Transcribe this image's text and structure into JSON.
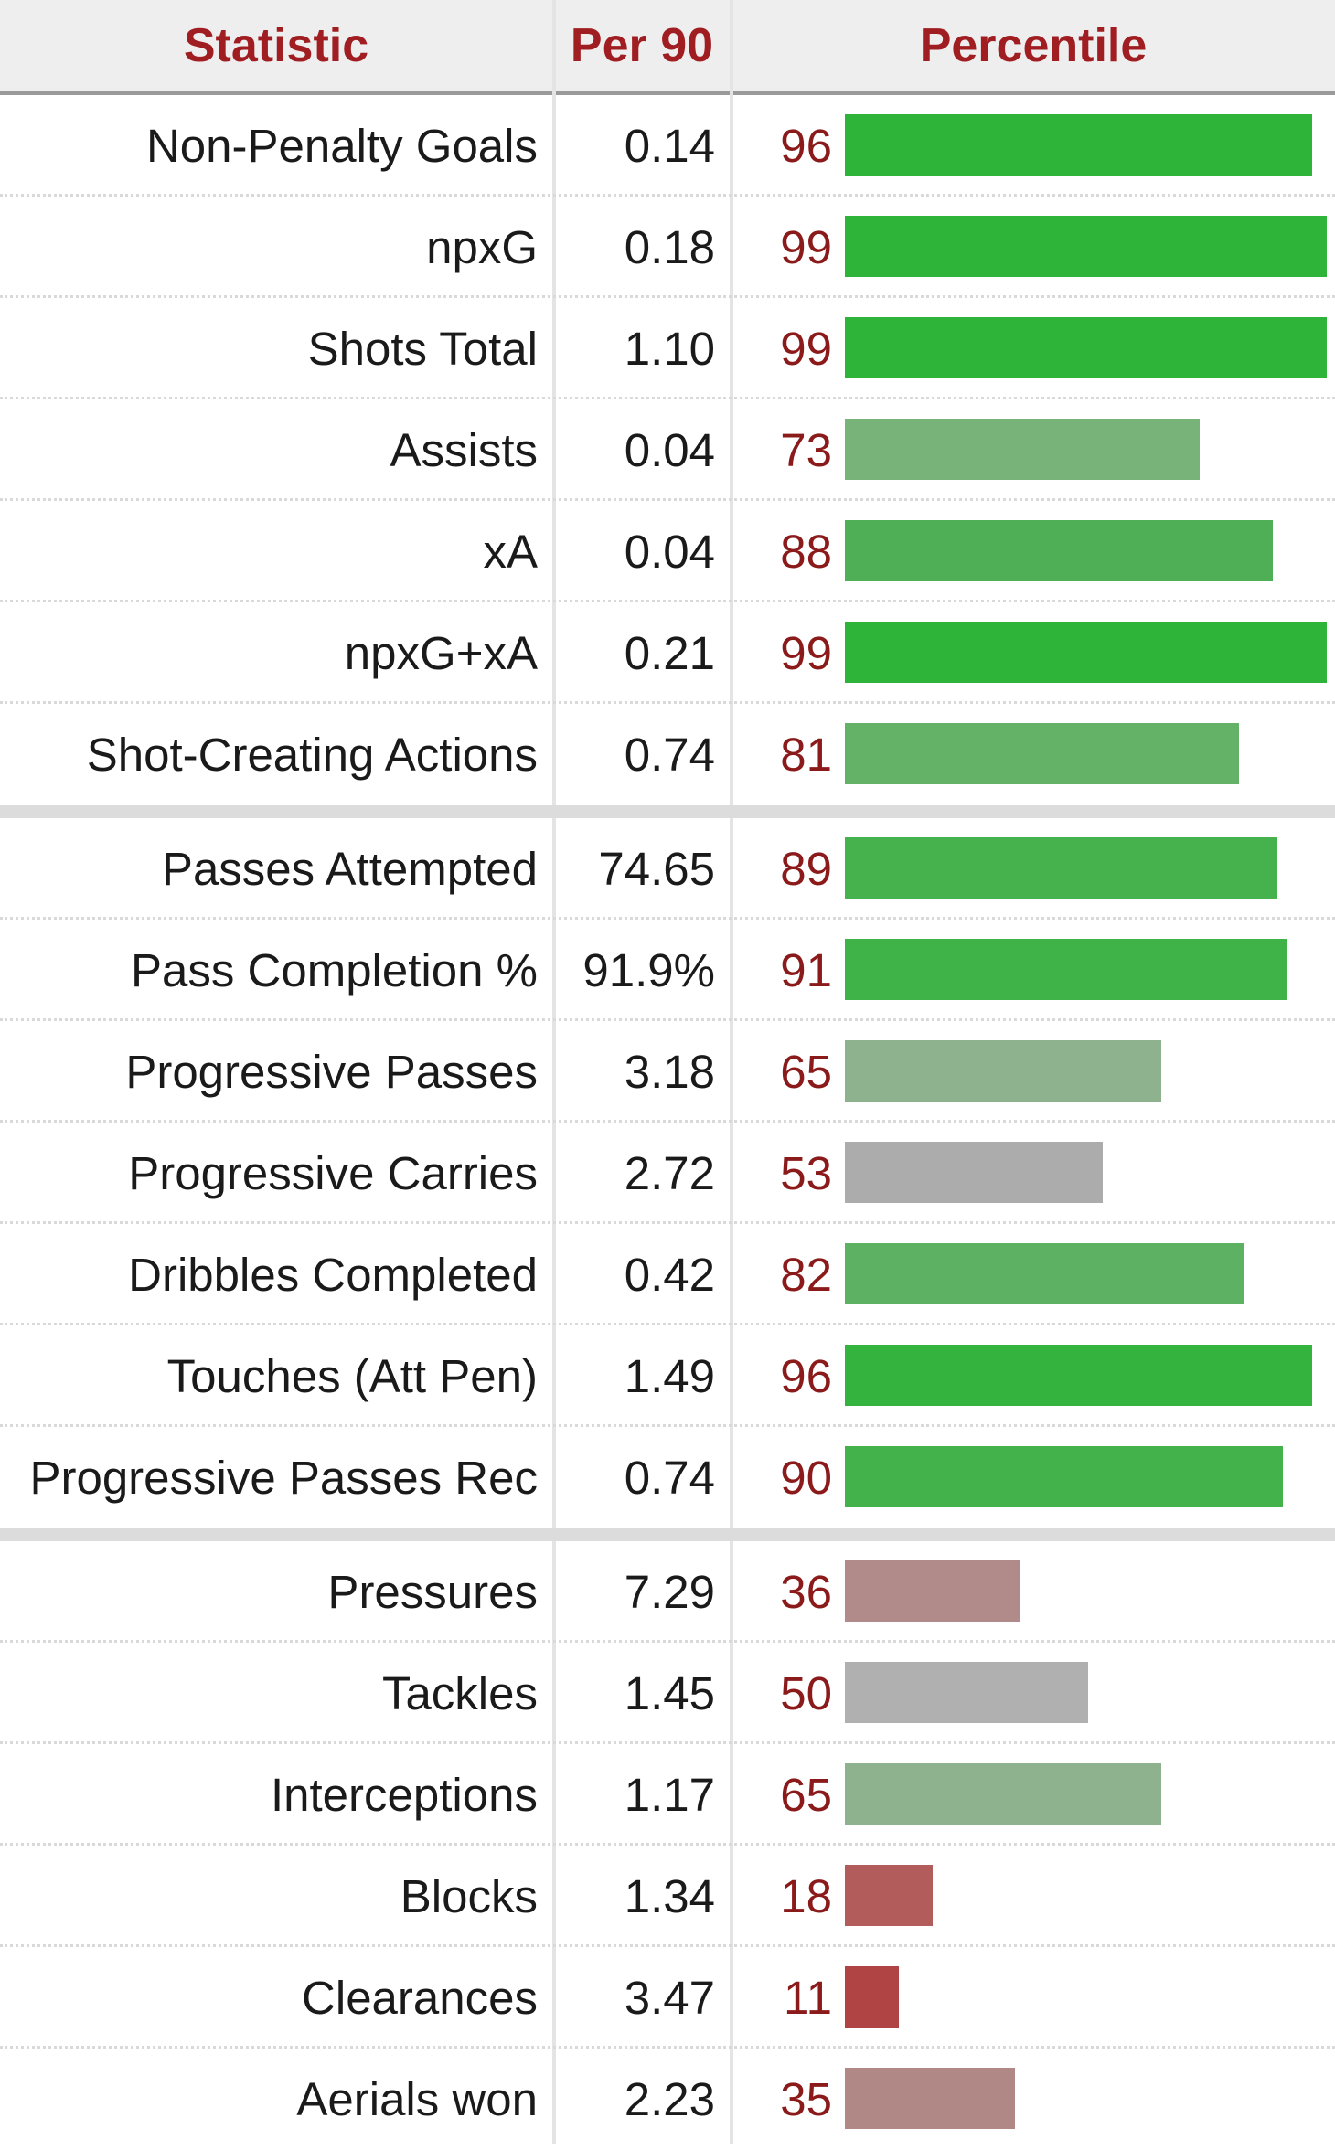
{
  "header": {
    "statistic": "Statistic",
    "per90": "Per 90",
    "percentile": "Percentile"
  },
  "chart_data": {
    "type": "bar",
    "columns": [
      "Statistic",
      "Per 90",
      "Percentile"
    ],
    "groups": [
      {
        "rows": [
          {
            "stat": "Non-Penalty Goals",
            "per90": "0.14",
            "percentile": 96,
            "color": "#2fb43a"
          },
          {
            "stat": "npxG",
            "per90": "0.18",
            "percentile": 99,
            "color": "#2fb43a"
          },
          {
            "stat": "Shots Total",
            "per90": "1.10",
            "percentile": 99,
            "color": "#2fb43a"
          },
          {
            "stat": "Assists",
            "per90": "0.04",
            "percentile": 73,
            "color": "#78b37a"
          },
          {
            "stat": "xA",
            "per90": "0.04",
            "percentile": 88,
            "color": "#4eaf56"
          },
          {
            "stat": "npxG+xA",
            "per90": "0.21",
            "percentile": 99,
            "color": "#2fb43a"
          },
          {
            "stat": "Shot-Creating Actions",
            "per90": "0.74",
            "percentile": 81,
            "color": "#63b268"
          }
        ]
      },
      {
        "rows": [
          {
            "stat": "Passes Attempted",
            "per90": "74.65",
            "percentile": 89,
            "color": "#46b24e"
          },
          {
            "stat": "Pass Completion %",
            "per90": "91.9%",
            "percentile": 91,
            "color": "#3fb348"
          },
          {
            "stat": "Progressive Passes",
            "per90": "3.18",
            "percentile": 65,
            "color": "#8fb28e"
          },
          {
            "stat": "Progressive Carries",
            "per90": "2.72",
            "percentile": 53,
            "color": "#acacac"
          },
          {
            "stat": "Dribbles Completed",
            "per90": "0.42",
            "percentile": 82,
            "color": "#5cb262"
          },
          {
            "stat": "Touches (Att Pen)",
            "per90": "1.49",
            "percentile": 96,
            "color": "#35b33f"
          },
          {
            "stat": "Progressive Passes Rec",
            "per90": "0.74",
            "percentile": 90,
            "color": "#43b24b"
          }
        ]
      },
      {
        "rows": [
          {
            "stat": "Pressures",
            "per90": "7.29",
            "percentile": 36,
            "color": "#b08b89"
          },
          {
            "stat": "Tackles",
            "per90": "1.45",
            "percentile": 50,
            "color": "#b0b0b0"
          },
          {
            "stat": "Interceptions",
            "per90": "1.17",
            "percentile": 65,
            "color": "#8fb28e"
          },
          {
            "stat": "Blocks",
            "per90": "1.34",
            "percentile": 18,
            "color": "#b25c5c"
          },
          {
            "stat": "Clearances",
            "per90": "3.47",
            "percentile": 11,
            "color": "#b04444"
          },
          {
            "stat": "Aerials won",
            "per90": "2.23",
            "percentile": 35,
            "color": "#b08886"
          }
        ]
      }
    ],
    "percentile_range": [
      0,
      100
    ],
    "grid": false,
    "legend": "none"
  }
}
